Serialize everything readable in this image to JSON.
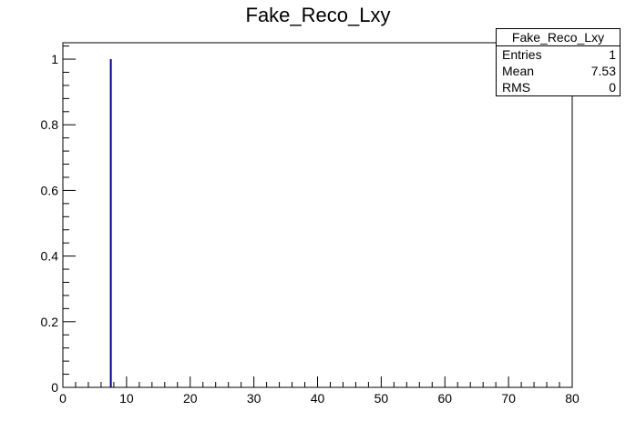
{
  "title": "Fake_Reco_Lxy",
  "stats": {
    "name": "Fake_Reco_Lxy",
    "rows": [
      {
        "label": "Entries",
        "value": "1"
      },
      {
        "label": "Mean",
        "value": "7.53"
      },
      {
        "label": "RMS",
        "value": "0"
      }
    ]
  },
  "chart_data": {
    "type": "bar",
    "title": "Fake_Reco_Lxy",
    "xlabel": "",
    "ylabel": "",
    "xlim": [
      0,
      80
    ],
    "ylim": [
      0,
      1.05
    ],
    "x_ticks": [
      "0",
      "10",
      "20",
      "30",
      "40",
      "50",
      "60",
      "70",
      "80"
    ],
    "y_ticks": [
      "0",
      "0.2",
      "0.4",
      "0.6",
      "0.8",
      "1"
    ],
    "series": [
      {
        "points": [
          {
            "x": 7.53,
            "y": 1
          }
        ],
        "color": "#000080"
      }
    ],
    "grid": false,
    "legend": "top-right"
  }
}
